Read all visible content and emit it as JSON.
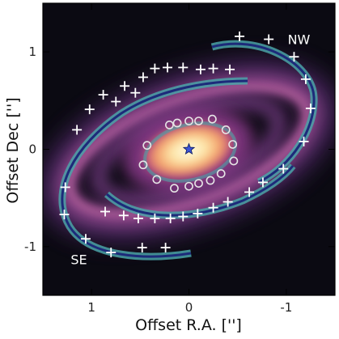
{
  "chart_data": {
    "type": "scatter",
    "xlabel": "Offset R.A. ['']",
    "ylabel": "Offset Dec ['']",
    "xlim": [
      1.5,
      -1.5
    ],
    "ylim": [
      -1.5,
      1.5
    ],
    "xticks": [
      1,
      0,
      -1
    ],
    "xtick_labels": [
      "1",
      "0",
      "-1"
    ],
    "yticks": [
      1,
      0,
      -1
    ],
    "ytick_labels": [
      "1",
      "0",
      "-1"
    ],
    "star": {
      "x": 0,
      "y": 0
    },
    "annotations": [
      {
        "text": "NW",
        "x": -1.13,
        "y": 1.13
      },
      {
        "text": "SE",
        "x": 1.13,
        "y": -1.13
      }
    ],
    "series": [
      {
        "marker": "plus",
        "points": [
          [
            -0.52,
            1.16
          ],
          [
            -0.82,
            1.13
          ],
          [
            -1.08,
            0.95
          ],
          [
            -1.2,
            0.72
          ],
          [
            -1.25,
            0.42
          ],
          [
            -1.18,
            0.08
          ],
          [
            -0.97,
            -0.2
          ],
          [
            -0.76,
            -0.34
          ],
          [
            -0.62,
            -0.44
          ],
          [
            -0.4,
            -0.54
          ],
          [
            -0.25,
            -0.6
          ],
          [
            -0.09,
            -0.66
          ],
          [
            0.06,
            -0.69
          ],
          [
            0.19,
            -0.71
          ],
          [
            0.35,
            -0.71
          ],
          [
            0.52,
            -0.71
          ],
          [
            0.67,
            -0.68
          ],
          [
            0.86,
            -0.64
          ],
          [
            1.27,
            -0.39
          ],
          [
            1.28,
            -0.67
          ],
          [
            1.06,
            -0.92
          ],
          [
            0.8,
            -1.06
          ],
          [
            0.48,
            -1.01
          ],
          [
            0.24,
            -1.01
          ],
          [
            1.15,
            0.2
          ],
          [
            1.02,
            0.41
          ],
          [
            0.88,
            0.56
          ],
          [
            0.66,
            0.65
          ],
          [
            0.47,
            0.74
          ],
          [
            0.35,
            0.83
          ],
          [
            0.22,
            0.84
          ],
          [
            0.06,
            0.84
          ],
          [
            -0.12,
            0.82
          ],
          [
            -0.25,
            0.83
          ],
          [
            -0.42,
            0.82
          ],
          [
            0.75,
            0.49
          ],
          [
            0.55,
            0.58
          ]
        ]
      },
      {
        "marker": "circle",
        "points": [
          [
            0.2,
            0.25
          ],
          [
            0.12,
            0.27
          ],
          [
            0.0,
            0.29
          ],
          [
            -0.1,
            0.29
          ],
          [
            -0.24,
            0.31
          ],
          [
            -0.38,
            0.2
          ],
          [
            -0.45,
            0.05
          ],
          [
            -0.46,
            -0.12
          ],
          [
            -0.33,
            -0.25
          ],
          [
            -0.22,
            -0.32
          ],
          [
            -0.1,
            -0.35
          ],
          [
            0.0,
            -0.38
          ],
          [
            0.15,
            -0.4
          ],
          [
            0.33,
            -0.31
          ],
          [
            0.47,
            -0.16
          ],
          [
            0.43,
            0.04
          ]
        ]
      }
    ]
  }
}
